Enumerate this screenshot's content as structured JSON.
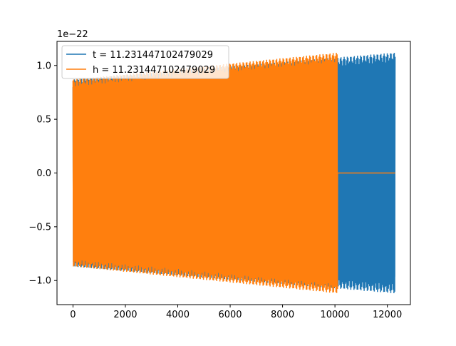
{
  "chart_data": {
    "type": "line",
    "title": "",
    "xlabel": "",
    "ylabel": "",
    "offset_text": "1e−22",
    "xlim": [
      -610,
      12880
    ],
    "ylim": [
      -1.224e-22,
      1.224e-22
    ],
    "x_ticks": [
      0,
      2000,
      4000,
      6000,
      8000,
      10000,
      12000
    ],
    "x_tick_labels": [
      "0",
      "2000",
      "4000",
      "6000",
      "8000",
      "10000",
      "12000"
    ],
    "y_ticks": [
      -1e-22,
      -5e-23,
      0.0,
      5e-23,
      1e-22
    ],
    "y_tick_labels": [
      "−1.0",
      "−0.5",
      "0.0",
      "0.5",
      "1.0"
    ],
    "grid": false,
    "legend": {
      "position": "top-left"
    },
    "series": [
      {
        "name": "t = 11.231447102479029",
        "color": "#1f77b4",
        "description": "dense oscillation, amplitude envelope growing from ~0.87e-22 at x=0 to ~1.12e-22 at x≈12300",
        "x_start": 0,
        "x_end": 12300,
        "envelope_start": 8.7e-23,
        "envelope_end": 1.12e-22
      },
      {
        "name": "h = 11.231447102479029",
        "color": "#ff7f0e",
        "description": "dense oscillation, amplitude growing from ~0.87e-22 to ~1.12e-22 by x≈10100, then zero until x≈12300",
        "x_start": 0,
        "x_end": 10100,
        "x_zero_end": 12300,
        "envelope_start": 8.7e-23,
        "envelope_end": 1.12e-22
      }
    ]
  }
}
